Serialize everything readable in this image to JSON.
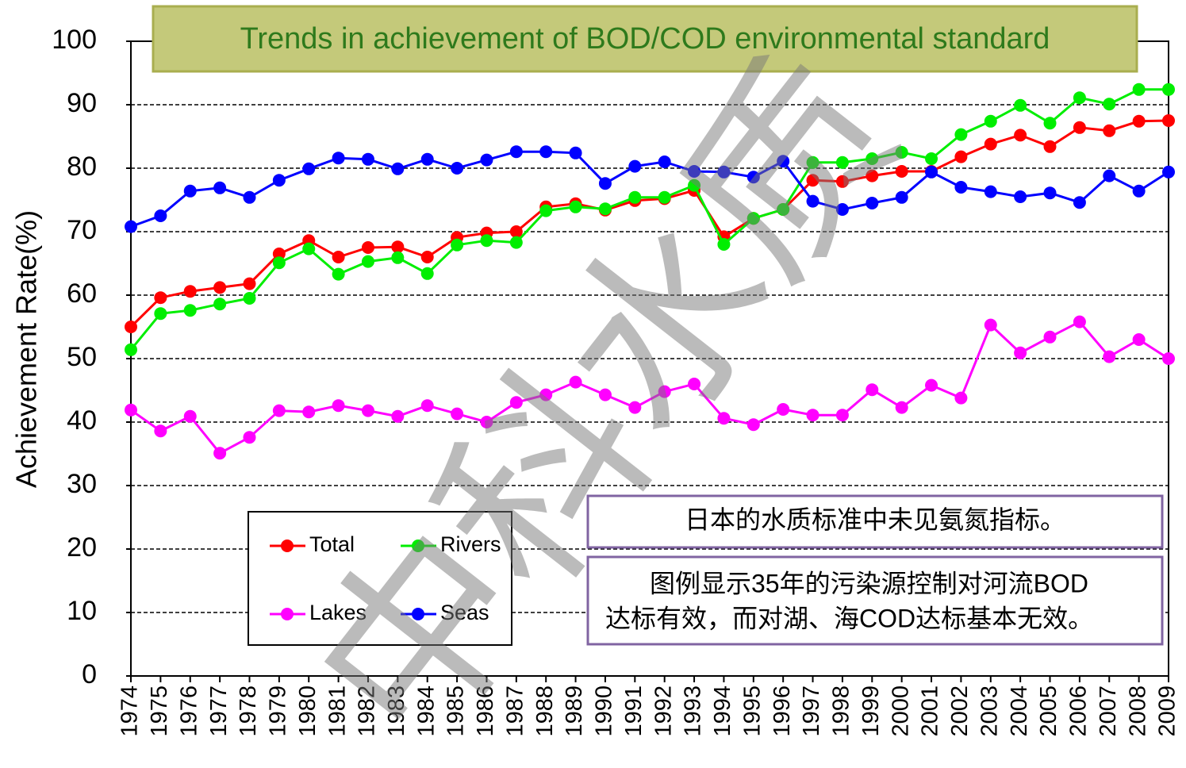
{
  "chart_data": {
    "type": "line",
    "title": "Trends in achievement of BOD/COD environmental standard",
    "y_label": "Achievement Rate(%)",
    "categories": [
      "1974",
      "1975",
      "1976",
      "1977",
      "1978",
      "1979",
      "1980",
      "1981",
      "1982",
      "1983",
      "1984",
      "1985",
      "1986",
      "1987",
      "1988",
      "1989",
      "1990",
      "1991",
      "1992",
      "1993",
      "1994",
      "1995",
      "1996",
      "1997",
      "1998",
      "1999",
      "2000",
      "2001",
      "2002",
      "2003",
      "2004",
      "2005",
      "2006",
      "2007",
      "2008",
      "2009"
    ],
    "series": [
      {
        "name": "Total",
        "color": "#ff0000",
        "values": [
          55,
          59.6,
          60.6,
          61.2,
          61.8,
          66.5,
          68.6,
          66,
          67.5,
          67.6,
          66,
          69.1,
          69.8,
          70,
          73.9,
          74.4,
          73.4,
          74.9,
          75.2,
          76.5,
          69.2,
          72.1,
          73.5,
          78.1,
          77.9,
          78.8,
          79.5,
          79.5,
          81.8,
          83.8,
          85.2,
          83.4,
          86.4,
          85.9,
          87.4,
          87.5
        ]
      },
      {
        "name": "Rivers",
        "color": "#00ee00",
        "values": [
          51.4,
          57.1,
          57.6,
          58.6,
          59.5,
          65.1,
          67.3,
          63.3,
          65.3,
          65.9,
          63.4,
          67.9,
          68.6,
          68.3,
          73.3,
          73.9,
          73.6,
          75.4,
          75.4,
          77.3,
          68,
          72.1,
          73.5,
          80.9,
          80.9,
          81.5,
          82.5,
          81.5,
          85.3,
          87.4,
          89.9,
          87.1,
          91.1,
          90.1,
          92.4,
          92.4
        ]
      },
      {
        "name": "Lakes",
        "color": "#ff00ff",
        "values": [
          41.9,
          38.6,
          40.9,
          35.1,
          37.6,
          41.8,
          41.6,
          42.6,
          41.8,
          40.9,
          42.6,
          41.3,
          40,
          43.1,
          44.3,
          46.3,
          44.3,
          42.3,
          44.8,
          46,
          40.6,
          39.6,
          42,
          41.1,
          41.1,
          45.1,
          42.3,
          45.8,
          43.8,
          55.3,
          50.9,
          53.4,
          55.8,
          50.3,
          53,
          50
        ]
      },
      {
        "name": "Seas",
        "color": "#0000ff",
        "values": [
          70.8,
          72.5,
          76.4,
          76.9,
          75.4,
          78.1,
          79.9,
          81.6,
          81.4,
          79.9,
          81.4,
          80,
          81.3,
          82.6,
          82.6,
          82.4,
          77.6,
          80.3,
          81,
          79.5,
          79.4,
          78.6,
          81.1,
          74.8,
          73.5,
          74.5,
          75.4,
          79.4,
          77,
          76.3,
          75.5,
          76.1,
          74.6,
          78.8,
          76.4,
          79.4
        ]
      }
    ],
    "ylim": [
      0,
      100
    ],
    "yticks": [
      0,
      10,
      20,
      30,
      40,
      50,
      60,
      70,
      80,
      90,
      100
    ],
    "grid": true,
    "annotations": [
      [
        "日本的水质标准中未见氨氮指标。"
      ],
      [
        "图例显示35年的污染源控制对河流BOD",
        "达标有效，而对湖、海COD达标基本无效。"
      ]
    ],
    "watermark": "中科水质"
  }
}
